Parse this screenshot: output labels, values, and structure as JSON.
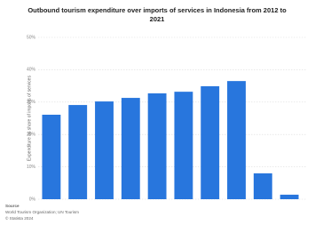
{
  "chart_data": {
    "type": "bar",
    "title": "Outbound tourism expenditure over imports of services in Indonesia from 2012 to 2021",
    "y_label": "Expenditure as share of imports of services",
    "categories": [
      null,
      null,
      null,
      null,
      null,
      null,
      null,
      null,
      null,
      null
    ],
    "values": [
      26.1,
      29.1,
      30.2,
      31.3,
      32.7,
      33.2,
      34.9,
      36.5,
      8.0,
      1.4
    ],
    "color": "#2876dd",
    "ylim": [
      0,
      50
    ],
    "yticks": [
      {
        "value": 0,
        "label": "0%"
      },
      {
        "value": 10,
        "label": "10%"
      },
      {
        "value": 20,
        "label": "20%"
      },
      {
        "value": 30,
        "label": "30%"
      },
      {
        "value": 40,
        "label": "40%"
      },
      {
        "value": 50,
        "label": "50%"
      }
    ],
    "grid": true,
    "source_heading": "Source",
    "source": "World Tourism Organization; UN Tourism",
    "copyright": "© Statista 2024"
  }
}
